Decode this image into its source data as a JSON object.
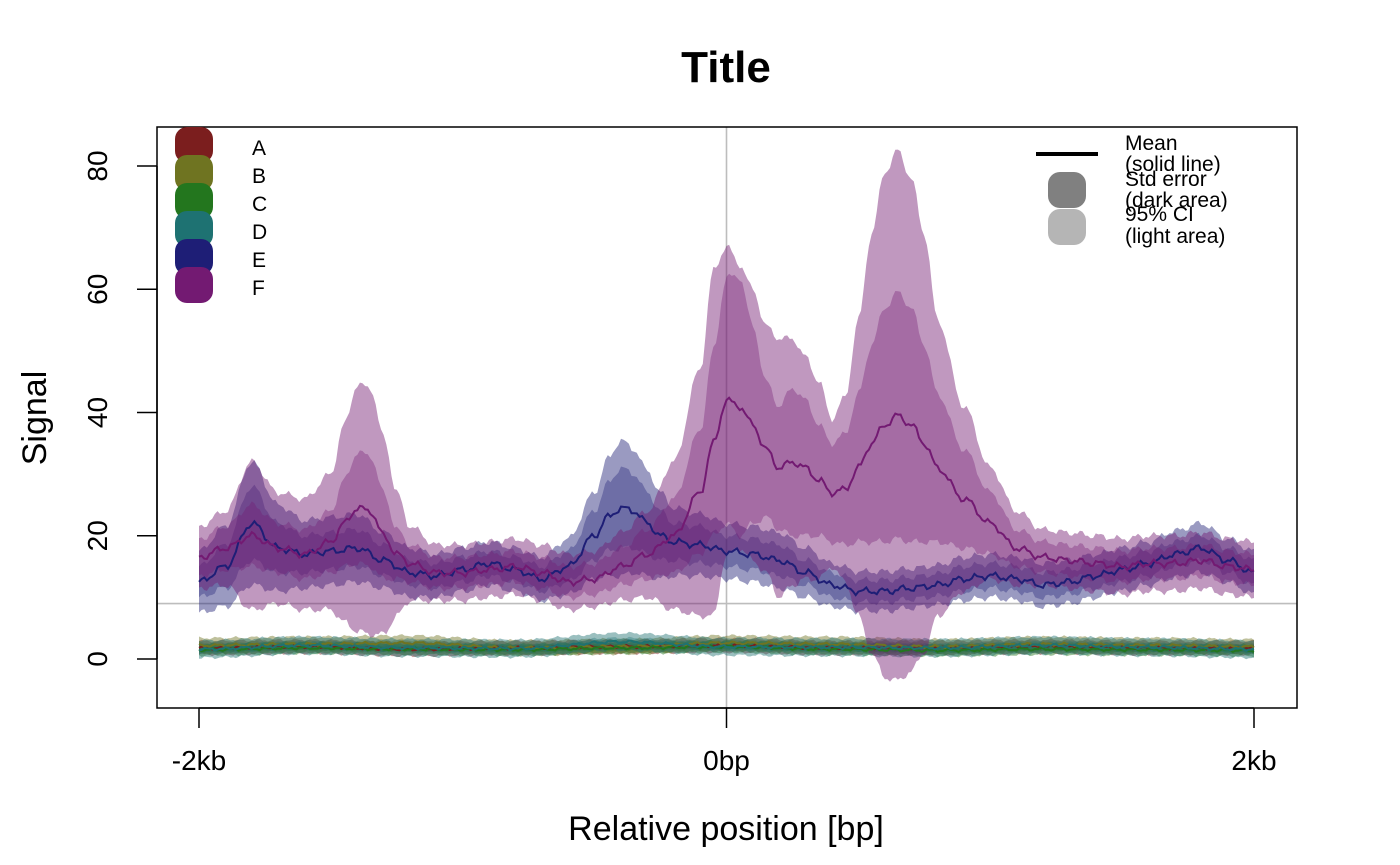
{
  "chart_data": {
    "type": "area",
    "title": "Title",
    "xlabel": "Relative position [bp]",
    "ylabel": "Signal",
    "xlim": [
      -2000,
      2000
    ],
    "ylim": [
      -8,
      86
    ],
    "x_ticks": [
      {
        "value": -2000,
        "label": "-2kb"
      },
      {
        "value": 0,
        "label": "0bp"
      },
      {
        "value": 2000,
        "label": "2kb"
      }
    ],
    "y_ticks": [
      {
        "value": 0,
        "label": "0"
      },
      {
        "value": 20,
        "label": "20"
      },
      {
        "value": 40,
        "label": "40"
      },
      {
        "value": 60,
        "label": "60"
      },
      {
        "value": 80,
        "label": "80"
      }
    ],
    "reference_lines": {
      "vertical_x": 0,
      "horizontal_y": 9,
      "color": "#bdbdbd"
    },
    "grid": false,
    "legend_series": {
      "placement": "top-left",
      "entries": [
        {
          "label": "A",
          "color": "#7b1e1e"
        },
        {
          "label": "B",
          "color": "#6f7421"
        },
        {
          "label": "C",
          "color": "#23761e"
        },
        {
          "label": "D",
          "color": "#1e7272"
        },
        {
          "label": "E",
          "color": "#1e1e76"
        },
        {
          "label": "F",
          "color": "#731a72"
        }
      ]
    },
    "legend_style": {
      "placement": "top-right",
      "entries": [
        {
          "symbol": "line",
          "label": "Mean",
          "sublabel": "(solid line)",
          "color": "#000000"
        },
        {
          "symbol": "box",
          "label": "Std error",
          "sublabel": "(dark area)",
          "color": "#808080"
        },
        {
          "symbol": "box",
          "label": "95% CI",
          "sublabel": "(light area)",
          "color": "#b5b5b5"
        }
      ]
    },
    "series": [
      {
        "name": "A",
        "color": "#7b1e1e",
        "x": [
          -2000,
          -1600,
          -1200,
          -800,
          -400,
          0,
          400,
          800,
          1200,
          1600,
          2000
        ],
        "mean": [
          1.8,
          2.0,
          1.6,
          1.8,
          2.0,
          2.2,
          1.8,
          1.8,
          2.0,
          1.8,
          1.8
        ],
        "se": 0.5,
        "ci": 1.1
      },
      {
        "name": "B",
        "color": "#6f7421",
        "x": [
          -2000,
          -1600,
          -1200,
          -800,
          -400,
          0,
          400,
          800,
          1200,
          1600,
          2000
        ],
        "mean": [
          2.2,
          2.4,
          2.6,
          1.8,
          2.0,
          2.6,
          2.4,
          2.0,
          2.4,
          2.2,
          2.0
        ],
        "se": 0.5,
        "ci": 1.2
      },
      {
        "name": "C",
        "color": "#23761e",
        "x": [
          -2000,
          -1600,
          -1200,
          -800,
          -400,
          0,
          400,
          800,
          1200,
          1600,
          2000
        ],
        "mean": [
          1.5,
          1.8,
          1.6,
          1.5,
          1.8,
          2.0,
          1.6,
          1.4,
          1.6,
          1.5,
          1.4
        ],
        "se": 0.4,
        "ci": 0.9
      },
      {
        "name": "D",
        "color": "#1e7272",
        "x": [
          -2000,
          -1600,
          -1200,
          -800,
          -400,
          0,
          400,
          800,
          1200,
          1600,
          2000
        ],
        "mean": [
          1.6,
          2.2,
          1.8,
          1.7,
          2.8,
          2.0,
          1.9,
          1.8,
          2.2,
          1.9,
          1.6
        ],
        "se": 0.6,
        "ci": 1.4
      },
      {
        "name": "E",
        "color": "#1e1e76",
        "x": [
          -2000,
          -1900,
          -1800,
          -1700,
          -1600,
          -1500,
          -1400,
          -1300,
          -1200,
          -1100,
          -1000,
          -900,
          -800,
          -700,
          -600,
          -500,
          -450,
          -400,
          -350,
          -300,
          -250,
          -200,
          -100,
          0,
          100,
          200,
          300,
          400,
          500,
          600,
          700,
          800,
          900,
          1000,
          1100,
          1200,
          1300,
          1400,
          1500,
          1600,
          1700,
          1800,
          1900,
          2000
        ],
        "mean": [
          12.5,
          15,
          22,
          18,
          17,
          17.5,
          18,
          16,
          14,
          13.5,
          14.5,
          15.5,
          14.5,
          13,
          15,
          20,
          23,
          24.5,
          24,
          22,
          20,
          19,
          18.5,
          17.5,
          17,
          16,
          14,
          12,
          11,
          11,
          11.5,
          12,
          13,
          13.5,
          13,
          12,
          12.5,
          13.5,
          14.5,
          15.5,
          17,
          18,
          16,
          14
        ],
        "se": [
          2.5,
          3.5,
          6,
          4,
          3,
          3,
          3,
          2.5,
          2,
          2,
          2,
          2,
          2,
          2,
          2.5,
          4,
          5.5,
          6.5,
          6,
          5,
          4,
          3,
          3,
          2.5,
          2.5,
          2.5,
          2,
          2,
          1.8,
          1.8,
          1.8,
          1.8,
          2,
          2,
          2,
          2,
          2,
          2,
          2,
          2,
          2,
          2,
          2,
          2
        ],
        "ci": [
          5,
          6.5,
          10,
          7,
          5.5,
          5.5,
          5.5,
          4.5,
          4,
          3.5,
          3.5,
          3.5,
          3.5,
          3.5,
          4.5,
          7,
          9.5,
          11,
          10,
          8.5,
          7,
          5.5,
          5,
          4.5,
          4.5,
          4.5,
          4,
          3.5,
          3.2,
          3.2,
          3.2,
          3.2,
          3.5,
          3.5,
          3.5,
          3.5,
          3.5,
          3.5,
          3.5,
          3.5,
          3.8,
          4,
          3.5,
          3.5
        ]
      },
      {
        "name": "F",
        "color": "#731a72",
        "x": [
          -2000,
          -1900,
          -1800,
          -1700,
          -1600,
          -1500,
          -1450,
          -1400,
          -1350,
          -1300,
          -1250,
          -1200,
          -1100,
          -1000,
          -900,
          -800,
          -700,
          -600,
          -500,
          -400,
          -300,
          -200,
          -100,
          -50,
          0,
          50,
          100,
          150,
          200,
          250,
          300,
          350,
          400,
          450,
          500,
          550,
          600,
          650,
          700,
          750,
          800,
          900,
          1000,
          1100,
          1200,
          1300,
          1400,
          1500,
          1600,
          1700,
          1800,
          1900,
          2000
        ],
        "mean": [
          16.5,
          18,
          20,
          18,
          17,
          19,
          22,
          24.5,
          24,
          20,
          17,
          15.5,
          14,
          14,
          14.5,
          15,
          14,
          12.5,
          13,
          15,
          17,
          20,
          27,
          35,
          42,
          41,
          38,
          34,
          31,
          32,
          31,
          29,
          27,
          27.5,
          31,
          35,
          38,
          39.5,
          38,
          35,
          31,
          26,
          22,
          18,
          16.5,
          16,
          15.5,
          15,
          15.5,
          15.5,
          16,
          15,
          14.5
        ],
        "se": [
          3,
          3.5,
          5,
          4,
          4,
          5,
          7,
          9,
          9,
          7,
          4,
          3,
          2.5,
          2.5,
          2.5,
          2.5,
          2.5,
          2.5,
          2.5,
          3,
          4,
          6,
          10,
          15,
          20,
          21,
          16,
          11,
          10,
          12,
          11,
          9,
          8,
          9,
          12,
          16,
          19,
          20,
          19,
          16,
          12,
          8,
          5,
          3,
          2.5,
          2.5,
          2.5,
          2.5,
          2.5,
          2.5,
          2.5,
          2.5,
          2.5
        ],
        "ci": [
          5,
          6,
          12,
          9,
          9,
          11,
          16,
          20,
          20,
          16,
          10,
          6,
          4.5,
          4.5,
          4.5,
          4.5,
          4.5,
          4.5,
          4.5,
          5.5,
          7,
          12,
          20,
          28,
          25,
          23,
          22,
          20,
          21,
          20,
          18,
          16,
          12,
          15,
          24,
          34,
          41,
          43,
          40,
          34,
          24,
          15,
          9,
          6,
          4.5,
          4.5,
          4.5,
          4.5,
          4.5,
          4.5,
          4.5,
          4.5,
          4.5
        ]
      }
    ]
  }
}
